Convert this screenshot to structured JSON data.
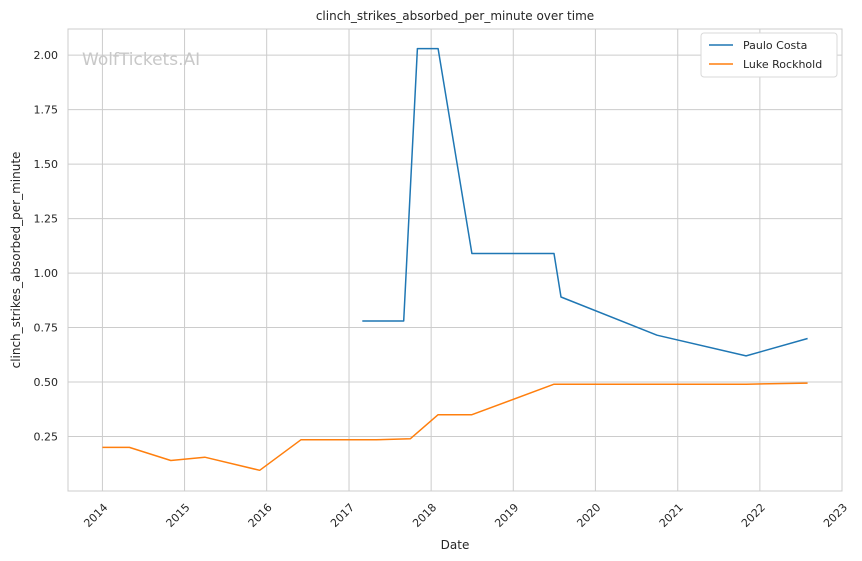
{
  "chart_data": {
    "type": "line",
    "title": "clinch_strikes_absorbed_per_minute over time",
    "xlabel": "Date",
    "ylabel": "clinch_strikes_absorbed_per_minute",
    "watermark": "WolfTickets.AI",
    "x_ticks": [
      "2014",
      "2015",
      "2016",
      "2017",
      "2018",
      "2019",
      "2020",
      "2021",
      "2022",
      "2023"
    ],
    "y_ticks": [
      "0.25",
      "0.50",
      "0.75",
      "1.00",
      "1.25",
      "1.50",
      "1.75",
      "2.00"
    ],
    "xlim": [
      "2013-08-01",
      "2023-01-01"
    ],
    "ylim": [
      0.0,
      2.12
    ],
    "grid": true,
    "legend_position": "top-right",
    "series": [
      {
        "name": "Paulo Costa",
        "color": "#1f77b4",
        "points": [
          [
            "2017-03-01",
            0.78
          ],
          [
            "2017-09-01",
            0.78
          ],
          [
            "2017-11-01",
            2.03
          ],
          [
            "2018-02-01",
            2.03
          ],
          [
            "2018-07-01",
            1.09
          ],
          [
            "2019-07-01",
            1.09
          ],
          [
            "2019-08-01",
            0.89
          ],
          [
            "2020-10-01",
            0.715
          ],
          [
            "2021-11-01",
            0.62
          ],
          [
            "2022-08-01",
            0.7
          ]
        ]
      },
      {
        "name": "Luke Rockhold",
        "color": "#ff7f0e",
        "points": [
          [
            "2014-01-01",
            0.2
          ],
          [
            "2014-05-01",
            0.2
          ],
          [
            "2014-11-01",
            0.14
          ],
          [
            "2015-04-01",
            0.155
          ],
          [
            "2015-12-01",
            0.095
          ],
          [
            "2016-06-01",
            0.235
          ],
          [
            "2017-05-01",
            0.235
          ],
          [
            "2017-10-01",
            0.24
          ],
          [
            "2018-02-01",
            0.35
          ],
          [
            "2018-07-01",
            0.35
          ],
          [
            "2019-07-01",
            0.49
          ],
          [
            "2021-11-01",
            0.49
          ],
          [
            "2022-08-01",
            0.495
          ]
        ]
      }
    ]
  }
}
